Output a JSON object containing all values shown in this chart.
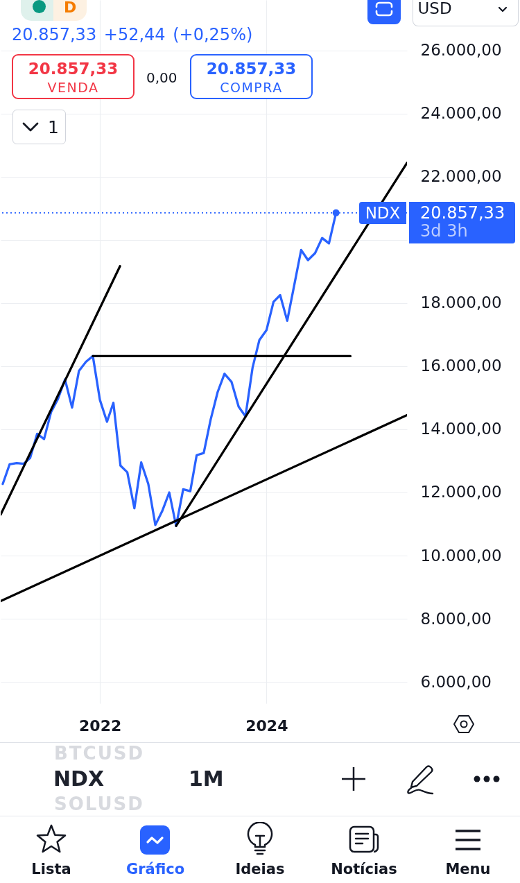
{
  "chart_data": {
    "type": "line",
    "x": [
      "2020-11",
      "2020-12",
      "2021-01",
      "2021-02",
      "2021-03",
      "2021-04",
      "2021-05",
      "2021-06",
      "2021-07",
      "2021-08",
      "2021-09",
      "2021-10",
      "2021-11",
      "2021-12",
      "2022-01",
      "2022-02",
      "2022-03",
      "2022-04",
      "2022-05",
      "2022-06",
      "2022-07",
      "2022-08",
      "2022-09",
      "2022-10",
      "2022-11",
      "2022-12",
      "2023-01",
      "2023-02",
      "2023-03",
      "2023-04",
      "2023-05",
      "2023-06",
      "2023-07",
      "2023-08",
      "2023-09",
      "2023-10",
      "2023-11",
      "2023-12",
      "2024-01",
      "2024-02",
      "2024-03",
      "2024-04",
      "2024-05",
      "2024-06",
      "2024-07",
      "2024-08",
      "2024-09",
      "2024-10",
      "2024-11"
    ],
    "series": [
      {
        "color": "#2962ff",
        "values": [
          12270,
          12890,
          12930,
          12910,
          13090,
          13860,
          13690,
          14550,
          14960,
          15580,
          14690,
          15850,
          16140,
          16320,
          14930,
          14240,
          14840,
          12850,
          12640,
          11500,
          12950,
          12270,
          10970,
          11410,
          12000,
          10940,
          12100,
          12040,
          13180,
          13250,
          14300,
          15180,
          15760,
          15500,
          14720,
          14410,
          15950,
          16830,
          17140,
          18040,
          18250,
          17440,
          18540,
          19680,
          19360,
          19580,
          20060,
          19890,
          20857.33
        ]
      },
      {
        "type": "line",
        "color": "#000000",
        "x": [
          "2020-10-23",
          "2022-03-30"
        ],
        "values": [
          11300,
          19170
        ]
      },
      {
        "type": "line",
        "color": "#000000",
        "x": [
          "2021-12",
          "2025-01-03"
        ],
        "values": [
          16320,
          16320
        ]
      },
      {
        "type": "line",
        "color": "#000000",
        "x": [
          "2022-12",
          "2025-09-08"
        ],
        "values": [
          10940,
          22440
        ]
      },
      {
        "type": "line",
        "color": "#000000",
        "x": [
          "2020-10-23",
          "2025-09-08"
        ],
        "values": [
          8560,
          14450
        ]
      },
      {
        "type": "scatter",
        "color": "#2962ff",
        "x": [
          "2024-11"
        ],
        "values": [
          20857.33
        ]
      }
    ],
    "xlim": [
      "2020-10-23",
      "2025-09-08"
    ],
    "xticks": [
      "2022",
      "2024"
    ],
    "ylim": [
      5320,
      27600
    ],
    "yticks": [
      {
        "value": 6000,
        "label": "6.000,00"
      },
      {
        "value": 8000,
        "label": "8.000,00"
      },
      {
        "value": 10000,
        "label": "10.000,00"
      },
      {
        "value": 12000,
        "label": "12.000,00"
      },
      {
        "value": 14000,
        "label": "14.000,00"
      },
      {
        "value": 16000,
        "label": "16.000,00"
      },
      {
        "value": 18000,
        "label": "18.000,00"
      },
      {
        "value": 20000,
        "label": null
      },
      {
        "value": 22000,
        "label": "22.000,00"
      },
      {
        "value": 24000,
        "label": "24.000,00"
      },
      {
        "value": 26000,
        "label": "26.000,00"
      }
    ],
    "grid": true,
    "ref_lines": [
      {
        "axis": "y",
        "value": 20857.33,
        "label": "NDX",
        "color": "#2962ff",
        "line_style": "dotted"
      }
    ],
    "annotations": [
      "D",
      "20.857,33 +52,44 (+0,25%)",
      "20.857,33",
      "VENDA",
      "0,00",
      "20.857,33",
      "COMPRA",
      "1",
      "USD",
      "20.857,33",
      "3d 3h",
      "BTCUSD",
      "NDX",
      "1M",
      "SOLUSD",
      "Lista",
      "Gráfico",
      "Ideias",
      "Notícias",
      "Menu"
    ]
  }
}
